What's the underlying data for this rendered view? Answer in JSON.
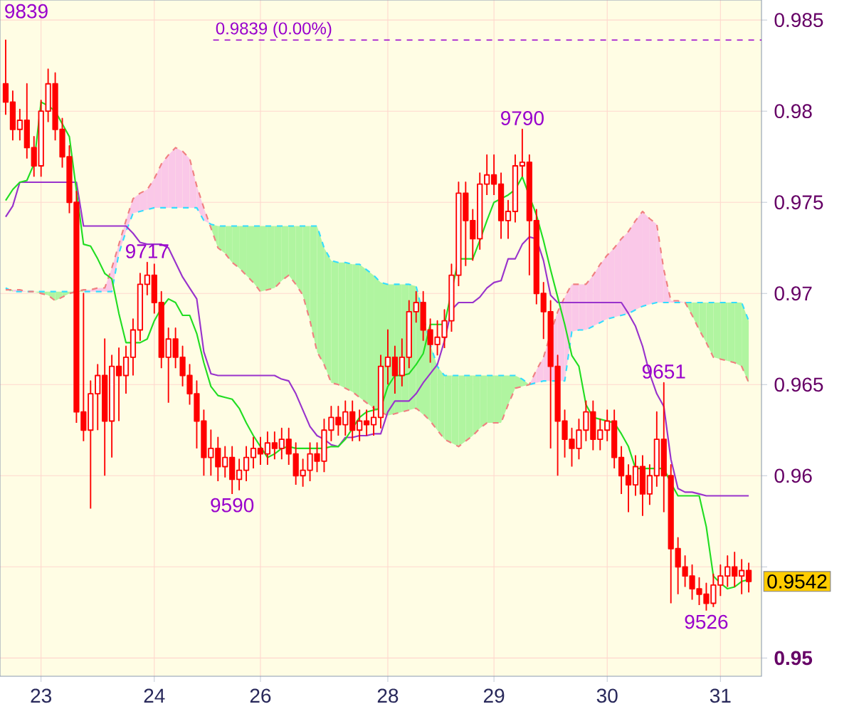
{
  "chart_data": {
    "type": "candlestick",
    "color": "#ff0000",
    "categories": [
      null,
      null,
      null,
      null,
      null,
      "23",
      null,
      null,
      null,
      null,
      null,
      null,
      null,
      null,
      null,
      null,
      null,
      null,
      null,
      null,
      null,
      "24",
      null,
      null,
      null,
      null,
      null,
      null,
      null,
      null,
      null,
      null,
      null,
      null,
      null,
      null,
      "26",
      null,
      null,
      null,
      null,
      null,
      null,
      null,
      null,
      null,
      null,
      null,
      null,
      null,
      null,
      null,
      null,
      null,
      "28",
      null,
      null,
      null,
      null,
      null,
      null,
      null,
      null,
      null,
      null,
      null,
      null,
      null,
      null,
      "29",
      null,
      null,
      null,
      null,
      null,
      null,
      null,
      null,
      null,
      null,
      null,
      null,
      null,
      null,
      null,
      "30",
      null,
      null,
      null,
      null,
      null,
      null,
      null,
      null,
      null,
      null,
      null,
      null,
      null,
      null,
      null,
      "31",
      null,
      null,
      null,
      null
    ],
    "ohlc": [
      [
        0.9815,
        0.9839,
        0.9798,
        0.9805
      ],
      [
        0.9805,
        0.9811,
        0.9784,
        0.979
      ],
      [
        0.979,
        0.9801,
        0.9784,
        0.9795
      ],
      [
        0.9795,
        0.9815,
        0.9774,
        0.978
      ],
      [
        0.978,
        0.9786,
        0.9764,
        0.977
      ],
      [
        0.977,
        0.9806,
        0.9764,
        0.98
      ],
      [
        0.98,
        0.9823,
        0.9794,
        0.9815
      ],
      [
        0.9815,
        0.9821,
        0.9784,
        0.979
      ],
      [
        0.979,
        0.9796,
        0.9769,
        0.9775
      ],
      [
        0.9775,
        0.9781,
        0.9744,
        0.975
      ],
      [
        0.975,
        0.9756,
        0.9629,
        0.9635
      ],
      [
        0.9635,
        0.97,
        0.9619,
        0.9625
      ],
      [
        0.9625,
        0.9652,
        0.9582,
        0.9645
      ],
      [
        0.9645,
        0.9661,
        0.9625,
        0.9655
      ],
      [
        0.9655,
        0.9675,
        0.96,
        0.963
      ],
      [
        0.963,
        0.9666,
        0.961,
        0.966
      ],
      [
        0.966,
        0.967,
        0.963,
        0.9655
      ],
      [
        0.9655,
        0.9671,
        0.9645,
        0.9665
      ],
      [
        0.9665,
        0.9686,
        0.9655,
        0.968
      ],
      [
        0.968,
        0.9711,
        0.9674,
        0.9705
      ],
      [
        0.9705,
        0.9717,
        0.9699,
        0.971
      ],
      [
        0.971,
        0.9716,
        0.9689,
        0.9695
      ],
      [
        0.9695,
        0.9701,
        0.9659,
        0.9665
      ],
      [
        0.9665,
        0.9681,
        0.964,
        0.9675
      ],
      [
        0.9675,
        0.9681,
        0.9659,
        0.9665
      ],
      [
        0.9665,
        0.9671,
        0.9649,
        0.9655
      ],
      [
        0.9655,
        0.9661,
        0.9639,
        0.9645
      ],
      [
        0.9645,
        0.9652,
        0.9615,
        0.963
      ],
      [
        0.963,
        0.9636,
        0.96,
        0.961
      ],
      [
        0.961,
        0.9625,
        0.96,
        0.9615
      ],
      [
        0.9615,
        0.9621,
        0.9597,
        0.9605
      ],
      [
        0.9605,
        0.9616,
        0.9599,
        0.961
      ],
      [
        0.961,
        0.9616,
        0.959,
        0.9598
      ],
      [
        0.9598,
        0.9609,
        0.9592,
        0.9603
      ],
      [
        0.9603,
        0.9616,
        0.9597,
        0.961
      ],
      [
        0.961,
        0.9621,
        0.9604,
        0.9615
      ],
      [
        0.9615,
        0.9621,
        0.9606,
        0.9612
      ],
      [
        0.9612,
        0.9624,
        0.9606,
        0.9618
      ],
      [
        0.9618,
        0.9624,
        0.9609,
        0.9615
      ],
      [
        0.9615,
        0.9626,
        0.9609,
        0.962
      ],
      [
        0.962,
        0.9626,
        0.9606,
        0.9612
      ],
      [
        0.9612,
        0.9618,
        0.9595,
        0.96
      ],
      [
        0.96,
        0.9609,
        0.9594,
        0.9603
      ],
      [
        0.9603,
        0.9618,
        0.9597,
        0.9612
      ],
      [
        0.9612,
        0.9618,
        0.9602,
        0.9608
      ],
      [
        0.9608,
        0.9631,
        0.9602,
        0.9625
      ],
      [
        0.9625,
        0.9638,
        0.9619,
        0.9632
      ],
      [
        0.9632,
        0.9638,
        0.9622,
        0.9628
      ],
      [
        0.9628,
        0.9641,
        0.9622,
        0.9635
      ],
      [
        0.9635,
        0.9641,
        0.9619,
        0.9625
      ],
      [
        0.9625,
        0.9636,
        0.9619,
        0.963
      ],
      [
        0.963,
        0.9636,
        0.9622,
        0.9628
      ],
      [
        0.9628,
        0.9638,
        0.9622,
        0.9632
      ],
      [
        0.9632,
        0.9666,
        0.9626,
        0.966
      ],
      [
        0.966,
        0.968,
        0.965,
        0.9665
      ],
      [
        0.9665,
        0.9671,
        0.9645,
        0.9655
      ],
      [
        0.9655,
        0.9675,
        0.9649,
        0.9665
      ],
      [
        0.9665,
        0.9696,
        0.9659,
        0.969
      ],
      [
        0.969,
        0.9701,
        0.9684,
        0.9695
      ],
      [
        0.9695,
        0.9701,
        0.9674,
        0.968
      ],
      [
        0.968,
        0.9686,
        0.9662,
        0.9672
      ],
      [
        0.9672,
        0.9685,
        0.9666,
        0.9676
      ],
      [
        0.9676,
        0.9691,
        0.967,
        0.9685
      ],
      [
        0.9685,
        0.9716,
        0.9679,
        0.971
      ],
      [
        0.971,
        0.9761,
        0.9704,
        0.9755
      ],
      [
        0.9755,
        0.9761,
        0.9715,
        0.974
      ],
      [
        0.974,
        0.9746,
        0.9718,
        0.973
      ],
      [
        0.973,
        0.9766,
        0.9724,
        0.976
      ],
      [
        0.976,
        0.9776,
        0.9754,
        0.9765
      ],
      [
        0.9765,
        0.9776,
        0.9754,
        0.976
      ],
      [
        0.976,
        0.9766,
        0.973,
        0.974
      ],
      [
        0.974,
        0.9751,
        0.973,
        0.9745
      ],
      [
        0.9745,
        0.9776,
        0.9739,
        0.977
      ],
      [
        0.977,
        0.979,
        0.9764,
        0.9772
      ],
      [
        0.9772,
        0.9776,
        0.971,
        0.974
      ],
      [
        0.974,
        0.9746,
        0.9694,
        0.97
      ],
      [
        0.97,
        0.9706,
        0.9675,
        0.969
      ],
      [
        0.969,
        0.9696,
        0.9615,
        0.966
      ],
      [
        0.966,
        0.9666,
        0.96,
        0.963
      ],
      [
        0.963,
        0.9636,
        0.961,
        0.962
      ],
      [
        0.962,
        0.9626,
        0.9605,
        0.9615
      ],
      [
        0.9615,
        0.9631,
        0.9609,
        0.9625
      ],
      [
        0.9625,
        0.9641,
        0.9619,
        0.9635
      ],
      [
        0.9635,
        0.9641,
        0.9614,
        0.962
      ],
      [
        0.962,
        0.9631,
        0.9614,
        0.9625
      ],
      [
        0.9625,
        0.9636,
        0.9619,
        0.963
      ],
      [
        0.963,
        0.9636,
        0.9604,
        0.961
      ],
      [
        0.961,
        0.9616,
        0.959,
        0.96
      ],
      [
        0.96,
        0.9606,
        0.958,
        0.9595
      ],
      [
        0.9595,
        0.9611,
        0.9589,
        0.9605
      ],
      [
        0.9605,
        0.9611,
        0.9578,
        0.959
      ],
      [
        0.959,
        0.9606,
        0.9584,
        0.96
      ],
      [
        0.96,
        0.9635,
        0.9594,
        0.962
      ],
      [
        0.962,
        0.9651,
        0.958,
        0.96
      ],
      [
        0.96,
        0.9606,
        0.953,
        0.956
      ],
      [
        0.956,
        0.9566,
        0.9535,
        0.955
      ],
      [
        0.955,
        0.9556,
        0.9539,
        0.9545
      ],
      [
        0.9545,
        0.9551,
        0.9532,
        0.9538
      ],
      [
        0.9538,
        0.9544,
        0.9529,
        0.9535
      ],
      [
        0.9535,
        0.9541,
        0.9526,
        0.953
      ],
      [
        0.953,
        0.9546,
        0.9528,
        0.954
      ],
      [
        0.954,
        0.9551,
        0.9534,
        0.9545
      ],
      [
        0.9545,
        0.9556,
        0.9539,
        0.955
      ],
      [
        0.955,
        0.9558,
        0.9539,
        0.9545
      ],
      [
        0.9545,
        0.9554,
        0.9535,
        0.9548
      ],
      [
        0.9548,
        0.9552,
        0.9536,
        0.9542
      ]
    ],
    "series": [
      {
        "type": "line",
        "line_style": "dashed",
        "color": "#33ddff",
        "values": [
          0.9703,
          0.9701,
          0.9701,
          0.9701,
          0.9701,
          0.9701,
          0.9701,
          0.9701,
          0.9701,
          0.9701,
          null,
          0.9701,
          0.9701,
          0.9701,
          0.9701,
          0.9701,
          0.9722,
          0.9734,
          0.9744,
          0.9745,
          0.9746,
          0.9747,
          0.9747,
          0.9747,
          0.9747,
          0.9747,
          0.9747,
          0.9747,
          0.974,
          0.9738,
          0.9737,
          0.9737,
          0.9737,
          0.9737,
          0.9737,
          0.9737,
          0.9737,
          0.9737,
          0.9737,
          0.9737,
          0.9737,
          0.9737,
          0.9737,
          0.9737,
          0.9737,
          0.9725,
          0.9718,
          0.9717,
          0.9717,
          0.9716,
          0.9716,
          0.9713,
          0.971,
          0.9706,
          0.9705,
          0.9705,
          0.9705,
          0.9705,
          0.9704,
          null,
          0.9672,
          0.966,
          0.9655,
          0.9655,
          0.9655,
          0.9655,
          0.9655,
          0.9655,
          0.9655,
          0.9655,
          0.9655,
          0.9655,
          0.9655,
          0.9653,
          0.965,
          0.9651,
          0.9652,
          0.9652,
          0.9652,
          0.9652,
          0.9679,
          0.968,
          0.968,
          0.9682,
          0.9684,
          0.9686,
          0.9687,
          0.9688,
          0.9689,
          0.9691,
          0.9693,
          0.9694,
          0.9695,
          0.9695,
          0.9695,
          0.9695,
          0.9695,
          0.9695,
          0.9695,
          0.9695,
          0.9695,
          0.9695,
          0.9695,
          0.9695,
          0.9695,
          0.9685
        ]
      },
      {
        "type": "line",
        "line_style": "dashed",
        "color": "#f08080",
        "values": [
          0.9702,
          0.9702,
          0.9702,
          0.9701,
          0.9701,
          0.97,
          0.9699,
          0.9696,
          0.9698,
          0.97,
          0.9701,
          0.9702,
          0.9702,
          0.9703,
          0.9703,
          0.9714,
          0.9727,
          0.974,
          0.9752,
          0.9755,
          0.9757,
          0.9763,
          0.9771,
          0.9776,
          0.978,
          0.9778,
          0.9774,
          0.9759,
          0.9747,
          0.9736,
          0.9725,
          0.9722,
          0.9717,
          0.9714,
          0.971,
          0.9706,
          0.9701,
          0.9702,
          0.9703,
          0.9707,
          0.971,
          0.9705,
          0.9699,
          0.9685,
          0.9668,
          0.9661,
          0.9651,
          0.965,
          0.9648,
          0.9646,
          0.9643,
          0.964,
          0.9637,
          0.9635,
          0.9633,
          0.9634,
          0.9635,
          0.9636,
          0.9637,
          0.9634,
          0.963,
          0.9625,
          0.962,
          0.9618,
          0.9616,
          0.9619,
          0.9622,
          0.9626,
          0.9629,
          0.9629,
          0.9629,
          0.9639,
          0.9648,
          0.9649,
          0.965,
          0.9658,
          0.9665,
          0.9678,
          0.969,
          0.9698,
          0.9705,
          0.9705,
          0.9705,
          0.971,
          0.9716,
          0.9721,
          0.9725,
          0.973,
          0.9734,
          0.974,
          0.9745,
          0.9741,
          0.9738,
          0.9713,
          0.9696,
          0.9696,
          0.9695,
          0.9688,
          0.968,
          0.9673,
          0.9665,
          0.9664,
          0.9663,
          0.9662,
          0.966,
          0.9651
        ]
      },
      {
        "type": "line",
        "color": "#9933cc",
        "values": [
          0.9742,
          0.9748,
          0.9761,
          0.9761,
          0.9761,
          0.9761,
          0.9761,
          0.9761,
          0.9761,
          0.9761,
          0.9761,
          0.9737,
          0.9737,
          0.9737,
          0.9737,
          0.9737,
          0.9737,
          0.9737,
          0.9733,
          0.9728,
          0.9727,
          0.9727,
          0.9727,
          0.9725,
          0.9717,
          0.9709,
          0.9703,
          0.9697,
          0.9668,
          0.9656,
          0.9655,
          0.9655,
          0.9655,
          0.9655,
          0.9655,
          0.9655,
          0.9655,
          0.9655,
          0.9655,
          0.9653,
          0.9652,
          0.9645,
          0.9636,
          0.9627,
          0.9622,
          0.962,
          0.9617,
          0.9616,
          0.9621,
          0.9621,
          0.9622,
          0.9622,
          0.9623,
          0.9623,
          0.9635,
          0.9641,
          0.9641,
          0.9641,
          0.9645,
          0.9651,
          0.9656,
          0.9661,
          0.9674,
          0.9691,
          0.9695,
          0.9695,
          0.9695,
          0.9698,
          0.9703,
          0.9706,
          0.9707,
          0.9719,
          0.9719,
          0.9727,
          0.9731,
          0.973,
          0.9718,
          0.9699,
          0.9695,
          0.9695,
          0.9695,
          0.9695,
          0.9695,
          0.9695,
          0.9695,
          0.9695,
          0.9695,
          0.9695,
          0.9689,
          0.9682,
          0.9671,
          0.9656,
          0.9645,
          0.9638,
          0.9609,
          0.9593,
          0.9591,
          0.9591,
          0.959,
          0.9589,
          0.9589,
          0.9589,
          0.9589,
          0.9589,
          0.9589,
          0.9589
        ]
      },
      {
        "type": "line",
        "color": "#22dd22",
        "values": [
          0.9751,
          0.9757,
          0.9761,
          0.9762,
          0.9771,
          0.9805,
          0.9803,
          0.98,
          0.9793,
          0.9786,
          null,
          0.9727,
          0.9726,
          0.9719,
          0.9711,
          0.9708,
          0.9689,
          0.9673,
          0.9673,
          0.9673,
          0.9675,
          0.9685,
          0.9692,
          0.9697,
          0.9695,
          0.9688,
          0.9688,
          0.9678,
          0.9662,
          0.9649,
          0.9644,
          0.9643,
          0.9642,
          0.9637,
          0.9629,
          0.9622,
          0.9616,
          0.961,
          0.9612,
          0.9615,
          0.9616,
          0.9615,
          0.9615,
          0.9615,
          0.9615,
          0.9615,
          0.9616,
          0.9616,
          0.962,
          0.9626,
          0.9632,
          0.9635,
          0.9636,
          0.9637,
          0.9649,
          0.9655,
          0.9655,
          0.9656,
          0.9661,
          0.9667,
          0.9683,
          0.9683,
          0.9683,
          null,
          0.9719,
          0.9719,
          0.9719,
          0.9729,
          0.974,
          0.975,
          0.9752,
          0.9754,
          0.9757,
          0.9764,
          null,
          0.9743,
          0.9729,
          0.9713,
          0.9698,
          0.9683,
          0.9666,
          0.966,
          0.9639,
          0.9632,
          0.9631,
          0.963,
          0.9629,
          0.9623,
          0.9616,
          0.9604,
          0.9604,
          0.9604,
          0.9604,
          0.9604,
          0.9596,
          0.9589,
          0.9589,
          0.9589,
          0.9589,
          0.9572,
          0.9545,
          0.9541,
          0.9538,
          0.9539,
          0.9542,
          0.9543
        ]
      }
    ],
    "ylim": [
      0.949,
      0.9861
    ],
    "yticks": [
      {
        "value": 0.95,
        "label": "**0.95**"
      },
      {
        "value": 0.955,
        "label": null
      },
      0.96,
      0.965,
      0.97,
      0.975,
      0.98,
      0.985
    ],
    "grid": true,
    "ref_lines": [
      {
        "axis": "y",
        "value": 0.9839,
        "label": "0.9839 (0.00%)",
        "color": "#9900cc",
        "line_style": "dashed"
      }
    ],
    "annotations": [
      "9839",
      {
        "text": "9717",
        "y": 0.9717
      },
      {
        "text": "9590",
        "y": 0.959
      },
      {
        "text": "9790",
        "y": 0.979
      },
      {
        "text": "9651",
        "y": 0.9651
      },
      {
        "text": "9526",
        "y": 0.9526
      },
      "0.9542"
    ]
  }
}
